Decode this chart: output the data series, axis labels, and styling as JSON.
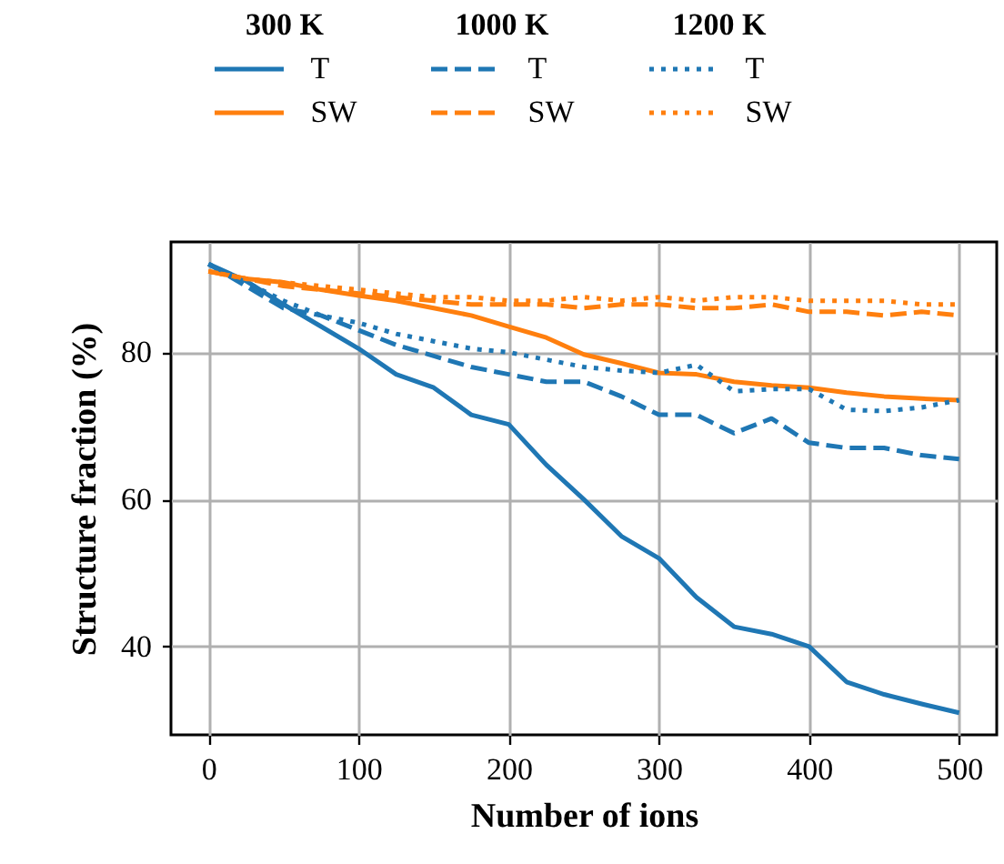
{
  "chart_data": {
    "type": "line",
    "xlabel": "Number of ions",
    "ylabel": "Structure fraction (%)",
    "annotations": [
      "300 K",
      "1000 K",
      "1200 K"
    ],
    "x": [
      0,
      25,
      50,
      75,
      100,
      125,
      150,
      175,
      200,
      225,
      250,
      275,
      300,
      325,
      350,
      375,
      400,
      425,
      450,
      475,
      500
    ],
    "series": [
      {
        "name": "T",
        "color": "#1f77b4",
        "line_style": "solid",
        "values": [
          92,
          89.7,
          86.5,
          83.5,
          80.5,
          77,
          75.2,
          71.5,
          70.2,
          64.7,
          60,
          55,
          52,
          46.7,
          42.7,
          41.7,
          40,
          35.2,
          33.5,
          32.2,
          31
        ]
      },
      {
        "name": "SW",
        "color": "#ff7f0e",
        "line_style": "solid",
        "values": [
          91,
          90,
          89.5,
          88.5,
          87.7,
          87,
          86,
          85,
          83.5,
          82,
          79.7,
          78.5,
          77.2,
          77,
          76,
          75.5,
          75.2,
          74.5,
          74,
          73.7,
          73.5
        ]
      },
      {
        "name": "T",
        "color": "#1f77b4",
        "line_style": "dashed",
        "values": [
          92,
          89,
          86,
          85,
          83,
          81,
          79.5,
          78,
          77,
          76,
          76,
          74,
          71.5,
          71.5,
          69,
          71,
          67.7,
          67,
          67,
          66,
          65.5
        ]
      },
      {
        "name": "SW",
        "color": "#ff7f0e",
        "line_style": "dashed",
        "values": [
          91,
          90,
          89,
          88.5,
          88,
          87.5,
          87,
          86.5,
          86.5,
          86.5,
          86,
          86.5,
          86.5,
          86,
          86,
          86.5,
          85.5,
          85.5,
          85,
          85.5,
          85
        ]
      },
      {
        "name": "T",
        "color": "#1f77b4",
        "line_style": "dotted",
        "values": [
          92,
          89.5,
          87,
          85,
          84,
          82.5,
          81.5,
          80.5,
          80,
          79,
          78,
          77.5,
          77.2,
          78.3,
          74.7,
          75,
          75,
          72.2,
          72,
          72.5,
          73.5
        ]
      },
      {
        "name": "SW",
        "color": "#ff7f0e",
        "line_style": "dotted",
        "values": [
          91,
          90,
          89.5,
          89,
          88.5,
          88,
          87.5,
          87.5,
          87,
          87,
          87.5,
          87,
          87.5,
          87,
          87.5,
          87.5,
          87,
          87,
          87,
          86.5,
          86.5
        ]
      }
    ],
    "xlim": [
      -25,
      525
    ],
    "ylim": [
      28,
      95
    ],
    "xticks": [
      0,
      100,
      200,
      300,
      400,
      500
    ],
    "yticks": [
      40,
      60,
      80
    ],
    "grid": true,
    "legend": "top"
  }
}
